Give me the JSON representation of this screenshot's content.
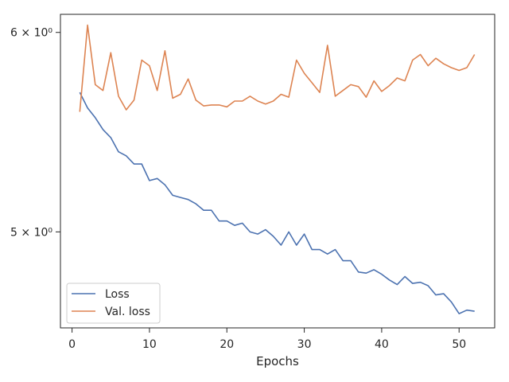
{
  "chart_data": {
    "type": "line",
    "xlabel": "Epochs",
    "ylabel": "",
    "yscale": "log",
    "xlim": [
      -1.5,
      54.6
    ],
    "ylim": [
      4.58,
      6.1
    ],
    "xticks": [
      0,
      10,
      20,
      30,
      40,
      50
    ],
    "xtick_labels": [
      "0",
      "10",
      "20",
      "30",
      "40",
      "50"
    ],
    "yticks": [
      5,
      6
    ],
    "ytick_labels": [
      "5 × 10⁰",
      "6 × 10⁰"
    ],
    "legend_position": "lower-left",
    "grid": false,
    "x": [
      1,
      2,
      3,
      4,
      5,
      6,
      7,
      8,
      9,
      10,
      11,
      12,
      13,
      14,
      15,
      16,
      17,
      18,
      19,
      20,
      21,
      22,
      23,
      24,
      25,
      26,
      27,
      28,
      29,
      30,
      31,
      32,
      33,
      34,
      35,
      36,
      37,
      38,
      39,
      40,
      41,
      42,
      43,
      44,
      45,
      46,
      47,
      48,
      49,
      50,
      51,
      52
    ],
    "series": [
      {
        "name": "Loss",
        "color": "#4c72b0",
        "values": [
          5.68,
          5.6,
          5.55,
          5.49,
          5.45,
          5.38,
          5.36,
          5.32,
          5.32,
          5.24,
          5.25,
          5.22,
          5.17,
          5.16,
          5.15,
          5.13,
          5.1,
          5.1,
          5.05,
          5.05,
          5.03,
          5.04,
          5.0,
          4.99,
          5.01,
          4.98,
          4.94,
          5.0,
          4.94,
          4.99,
          4.92,
          4.92,
          4.9,
          4.92,
          4.87,
          4.87,
          4.82,
          4.815,
          4.83,
          4.81,
          4.785,
          4.765,
          4.8,
          4.77,
          4.775,
          4.76,
          4.72,
          4.725,
          4.69,
          4.64,
          4.655,
          4.65
        ]
      },
      {
        "name": "Val. loss",
        "color": "#dd8452",
        "values": [
          5.58,
          6.04,
          5.72,
          5.69,
          5.89,
          5.66,
          5.59,
          5.64,
          5.85,
          5.82,
          5.69,
          5.9,
          5.65,
          5.67,
          5.75,
          5.64,
          5.61,
          5.615,
          5.615,
          5.605,
          5.635,
          5.635,
          5.66,
          5.635,
          5.62,
          5.635,
          5.67,
          5.655,
          5.85,
          5.78,
          5.73,
          5.68,
          5.93,
          5.66,
          5.69,
          5.72,
          5.71,
          5.655,
          5.74,
          5.685,
          5.715,
          5.755,
          5.74,
          5.85,
          5.88,
          5.82,
          5.86,
          5.83,
          5.81,
          5.795,
          5.81,
          5.88
        ]
      }
    ]
  }
}
